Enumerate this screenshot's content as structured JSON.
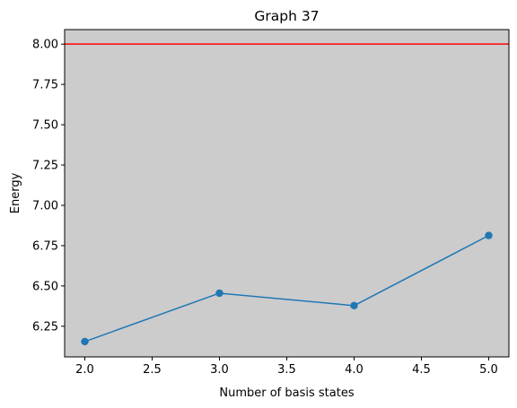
{
  "chart_data": {
    "type": "line",
    "title": "Graph 37",
    "xlabel": "Number of basis states",
    "ylabel": "Energy",
    "xlim": [
      1.85,
      5.15
    ],
    "ylim": [
      6.06,
      8.09
    ],
    "x_ticks": [
      2.0,
      2.5,
      3.0,
      3.5,
      4.0,
      4.5,
      5.0
    ],
    "x_tick_labels": [
      "2.0",
      "2.5",
      "3.0",
      "3.5",
      "4.0",
      "4.5",
      "5.0"
    ],
    "y_ticks": [
      6.25,
      6.5,
      6.75,
      7.0,
      7.25,
      7.5,
      7.75,
      8.0
    ],
    "y_tick_labels": [
      "6.25",
      "6.50",
      "6.75",
      "7.00",
      "7.25",
      "7.50",
      "7.75",
      "8.00"
    ],
    "grid": false,
    "series": [
      {
        "x": [
          2,
          3,
          4,
          5
        ],
        "y": [
          6.155,
          6.455,
          6.378,
          6.813
        ],
        "color": "#1f77b4",
        "marker": "circle"
      }
    ],
    "reference_lines": [
      {
        "orientation": "horizontal",
        "y": 8.0,
        "color": "#ff0000"
      }
    ],
    "plot_background": "#cccccc",
    "page_background": "#ffffff"
  }
}
